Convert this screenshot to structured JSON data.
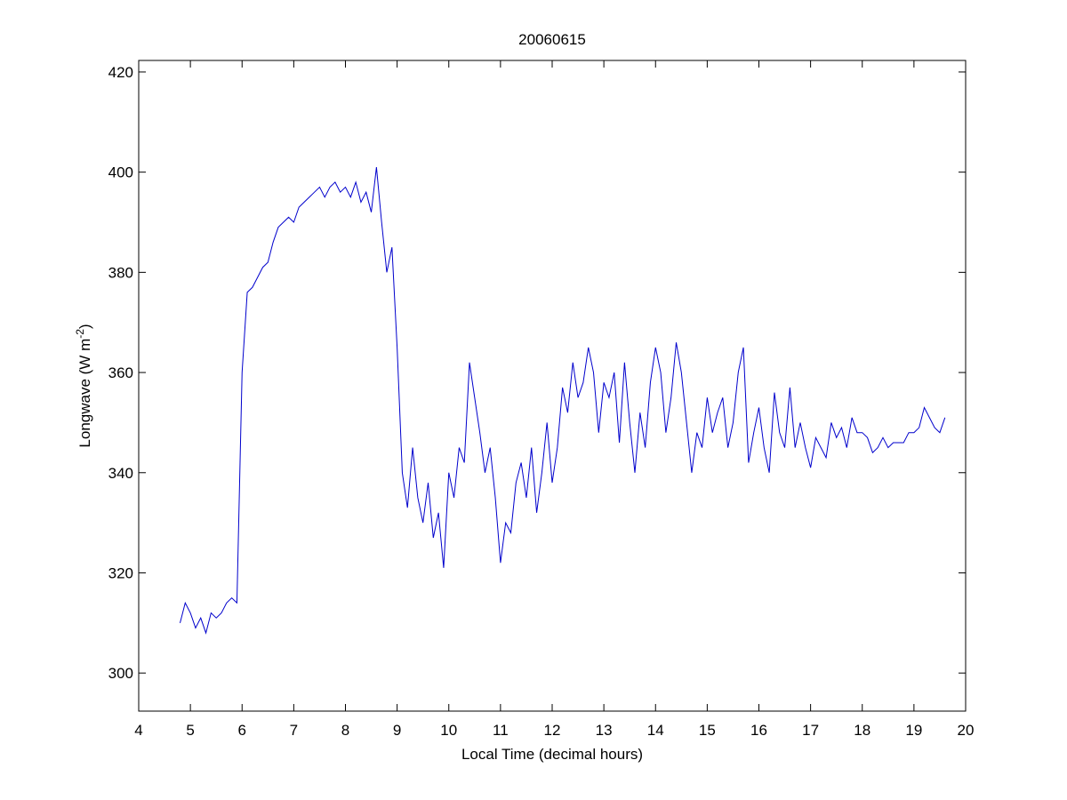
{
  "chart_data": {
    "type": "line",
    "title": "20060615",
    "xlabel": "Local Time (decimal hours)",
    "ylabel_parts": [
      "Longwave (W m",
      "-2",
      ")"
    ],
    "xlim": [
      4,
      20
    ],
    "xticks": [
      4,
      5,
      6,
      7,
      8,
      9,
      10,
      11,
      12,
      13,
      14,
      15,
      16,
      17,
      18,
      19,
      20
    ],
    "ylim": [
      292.4,
      422.3
    ],
    "yticks": [
      300,
      320,
      340,
      360,
      380,
      400,
      420
    ],
    "x": [
      4.8,
      4.9,
      5.0,
      5.1,
      5.2,
      5.3,
      5.4,
      5.5,
      5.6,
      5.7,
      5.8,
      5.9,
      6.0,
      6.1,
      6.2,
      6.3,
      6.4,
      6.5,
      6.6,
      6.7,
      6.8,
      6.9,
      7.0,
      7.1,
      7.2,
      7.3,
      7.4,
      7.5,
      7.6,
      7.7,
      7.8,
      7.9,
      8.0,
      8.1,
      8.2,
      8.3,
      8.4,
      8.5,
      8.6,
      8.7,
      8.8,
      8.9,
      9.0,
      9.1,
      9.2,
      9.3,
      9.4,
      9.5,
      9.6,
      9.7,
      9.8,
      9.9,
      10.0,
      10.1,
      10.2,
      10.3,
      10.4,
      10.5,
      10.6,
      10.7,
      10.8,
      10.9,
      11.0,
      11.1,
      11.2,
      11.3,
      11.4,
      11.5,
      11.6,
      11.7,
      11.8,
      11.9,
      12.0,
      12.1,
      12.2,
      12.3,
      12.4,
      12.5,
      12.6,
      12.7,
      12.8,
      12.9,
      13.0,
      13.1,
      13.2,
      13.3,
      13.4,
      13.5,
      13.6,
      13.7,
      13.8,
      13.9,
      14.0,
      14.1,
      14.2,
      14.3,
      14.4,
      14.5,
      14.6,
      14.7,
      14.8,
      14.9,
      15.0,
      15.1,
      15.2,
      15.3,
      15.4,
      15.5,
      15.6,
      15.7,
      15.8,
      15.9,
      16.0,
      16.1,
      16.2,
      16.3,
      16.4,
      16.5,
      16.6,
      16.7,
      16.8,
      16.9,
      17.0,
      17.1,
      17.2,
      17.3,
      17.4,
      17.5,
      17.6,
      17.7,
      17.8,
      17.9,
      18.0,
      18.1,
      18.2,
      18.3,
      18.4,
      18.5,
      18.6,
      18.7,
      18.8,
      18.9,
      19.0,
      19.1,
      19.2,
      19.3,
      19.4,
      19.5,
      19.6
    ],
    "series": [
      {
        "color": "#0000cc",
        "values": [
          310,
          314,
          312,
          309,
          311,
          308,
          312,
          311,
          312,
          314,
          315,
          314,
          360,
          376,
          377,
          379,
          381,
          382,
          386,
          389,
          390,
          391,
          390,
          393,
          394,
          395,
          396,
          397,
          395,
          397,
          398,
          396,
          397,
          395,
          398,
          394,
          396,
          392,
          401,
          390,
          380,
          385,
          365,
          340,
          333,
          345,
          335,
          330,
          338,
          327,
          332,
          321,
          340,
          335,
          345,
          342,
          362,
          355,
          348,
          340,
          345,
          335,
          322,
          330,
          328,
          338,
          342,
          335,
          345,
          332,
          340,
          350,
          338,
          345,
          357,
          352,
          362,
          355,
          358,
          365,
          360,
          348,
          358,
          355,
          360,
          346,
          362,
          350,
          340,
          352,
          345,
          358,
          365,
          360,
          348,
          355,
          366,
          360,
          350,
          340,
          348,
          345,
          355,
          348,
          352,
          355,
          345,
          350,
          360,
          365,
          342,
          348,
          353,
          345,
          340,
          356,
          348,
          345,
          357,
          345,
          350,
          345,
          341,
          347,
          345,
          343,
          350,
          347,
          349,
          345,
          351,
          348,
          348,
          347,
          344,
          345,
          347,
          345,
          346,
          346,
          346,
          348,
          348,
          349,
          353,
          351,
          349,
          348,
          351
        ]
      }
    ]
  }
}
